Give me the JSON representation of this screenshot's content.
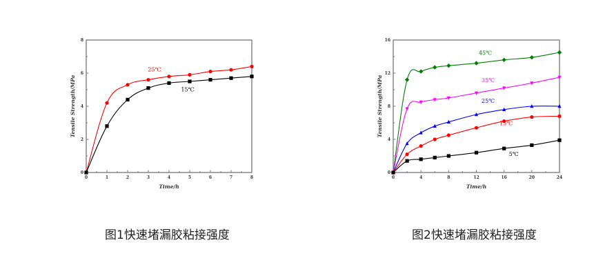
{
  "figures": [
    {
      "caption": "图1快速堵漏胶粘接强度"
    },
    {
      "caption": "图2快速堵漏胶粘接强度"
    }
  ],
  "chart_data": [
    {
      "type": "line",
      "title": "",
      "xlabel": "Time/h",
      "ylabel": "Tensile Strength/MPa",
      "xlim": [
        0,
        8
      ],
      "ylim": [
        0,
        8
      ],
      "xticks": [
        0,
        1,
        2,
        3,
        4,
        5,
        6,
        7,
        8
      ],
      "yticks": [
        0,
        2,
        4,
        6,
        8
      ],
      "grid": false,
      "legend": "inline labels",
      "x": [
        0,
        1,
        2,
        3,
        4,
        5,
        6,
        7,
        8
      ],
      "series": [
        {
          "name": "25℃",
          "color": "#ff0000",
          "marker": "circle",
          "values": [
            0,
            4.2,
            5.3,
            5.6,
            5.8,
            5.9,
            6.1,
            6.2,
            6.4
          ],
          "label_pos": [
            3.3,
            6.1
          ]
        },
        {
          "name": "15℃",
          "color": "#000000",
          "marker": "square",
          "values": [
            0,
            2.8,
            4.4,
            5.1,
            5.4,
            5.5,
            5.6,
            5.7,
            5.8
          ],
          "label_pos": [
            4.9,
            4.9
          ]
        }
      ]
    },
    {
      "type": "line",
      "title": "",
      "xlabel": "Time/h",
      "ylabel": "Tensile Strength/MPa",
      "xlim": [
        0,
        24
      ],
      "ylim": [
        0,
        16
      ],
      "xticks": [
        0,
        4,
        8,
        12,
        16,
        20,
        24
      ],
      "yticks": [
        0,
        4,
        8,
        12,
        16
      ],
      "grid": false,
      "legend": "inline labels",
      "x": [
        0,
        2,
        4,
        6,
        8,
        12,
        16,
        20,
        24
      ],
      "series": [
        {
          "name": "45℃",
          "color": "#008000",
          "marker": "diamond",
          "values": [
            0,
            11.2,
            12.2,
            12.7,
            12.9,
            13.2,
            13.6,
            13.9,
            14.5
          ],
          "label_pos": [
            13.3,
            14.2
          ]
        },
        {
          "name": "35℃",
          "color": "#ff00ff",
          "marker": "triangle-down",
          "values": [
            0,
            7.7,
            8.5,
            8.8,
            9.0,
            9.6,
            10.2,
            10.8,
            11.5
          ],
          "label_pos": [
            13.7,
            10.9
          ]
        },
        {
          "name": "25℃",
          "color": "#0000ff",
          "marker": "triangle-up",
          "values": [
            0,
            3.5,
            4.8,
            5.6,
            6.1,
            7.0,
            7.6,
            8.0,
            8.0
          ],
          "label_pos": [
            13.7,
            8.4
          ]
        },
        {
          "name": "15℃",
          "color": "#ff0000",
          "marker": "circle",
          "values": [
            0,
            2.2,
            3.2,
            4.0,
            4.5,
            5.4,
            6.2,
            6.7,
            6.8
          ],
          "label_pos": [
            16.3,
            5.7
          ]
        },
        {
          "name": "5℃",
          "color": "#000000",
          "marker": "square",
          "values": [
            0,
            1.4,
            1.6,
            1.8,
            2.0,
            2.4,
            2.9,
            3.3,
            3.9
          ],
          "label_pos": [
            17.4,
            2.0
          ]
        }
      ]
    }
  ]
}
